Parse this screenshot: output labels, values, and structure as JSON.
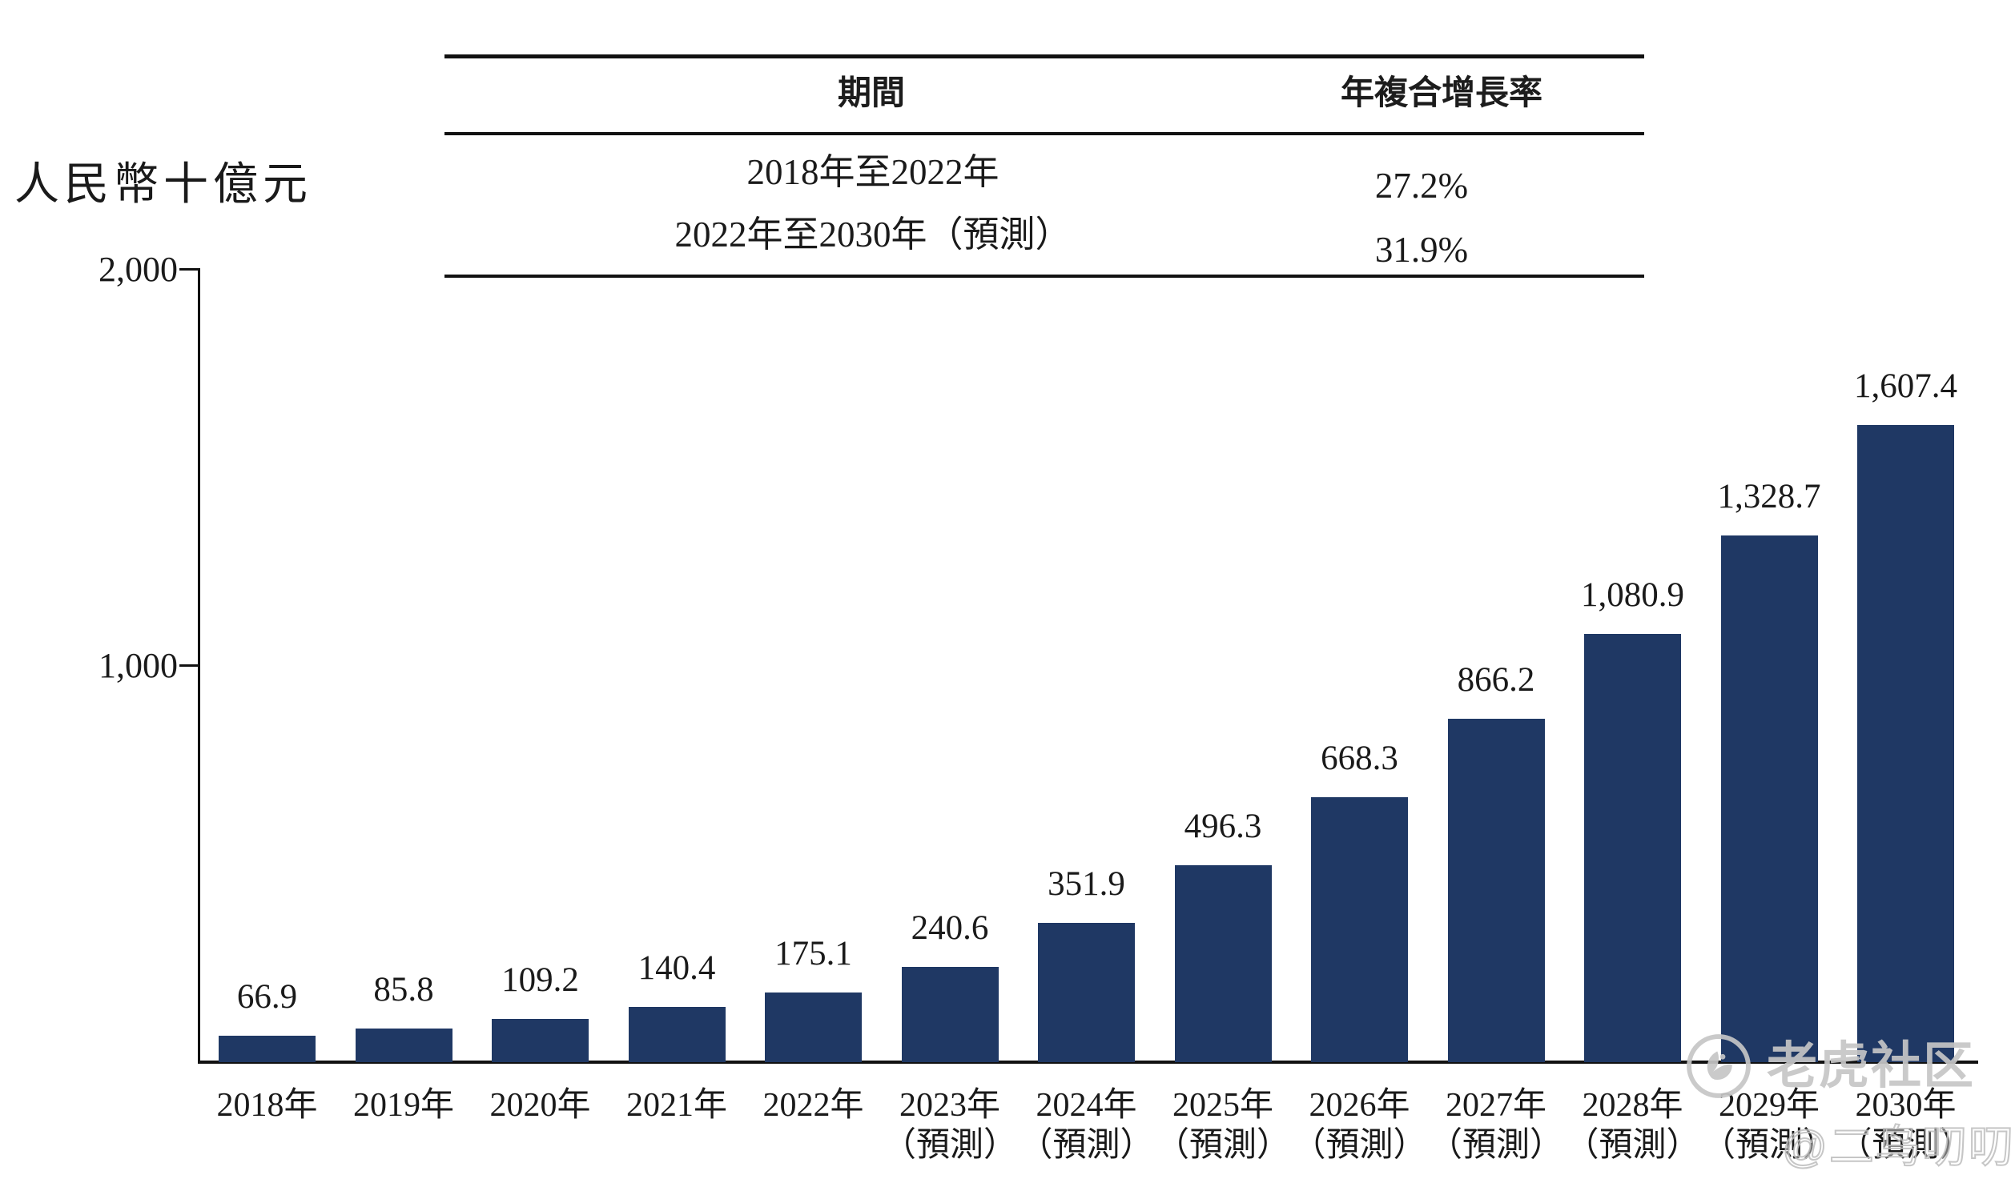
{
  "unit_label": "人民幣十億元",
  "cagr_table": {
    "col_period": "期間",
    "col_cagr": "年複合增長率",
    "rows": [
      {
        "period": "2018年至2022年",
        "cagr": "27.2%"
      },
      {
        "period": "2022年至2030年（預測）",
        "cagr": "31.9%"
      }
    ]
  },
  "y_axis": {
    "ticks": [
      {
        "label": "2,000",
        "value": 2000
      },
      {
        "label": "1,000",
        "value": 1000
      }
    ]
  },
  "watermark": {
    "brand": "老虎社区",
    "handle": "@二鸟叨叨"
  },
  "chart_data": {
    "type": "bar",
    "title": "",
    "ylabel": "人民幣十億元",
    "categories": [
      "2018年",
      "2019年",
      "2020年",
      "2021年",
      "2022年",
      "2023年",
      "2024年",
      "2025年",
      "2026年",
      "2027年",
      "2028年",
      "2029年",
      "2030年"
    ],
    "category_notes": [
      "",
      "",
      "",
      "",
      "",
      "（預測）",
      "（預測）",
      "（預測）",
      "（預測）",
      "（預測）",
      "（預測）",
      "（預測）",
      "（預測）"
    ],
    "values": [
      66.9,
      85.8,
      109.2,
      140.4,
      175.1,
      240.6,
      351.9,
      496.3,
      668.3,
      866.2,
      1080.9,
      1328.7,
      1607.4
    ],
    "value_labels": [
      "66.9",
      "85.8",
      "109.2",
      "140.4",
      "175.1",
      "240.6",
      "351.9",
      "496.3",
      "668.3",
      "866.2",
      "1,080.9",
      "1,328.7",
      "1,607.4"
    ],
    "ylim": [
      0,
      2000
    ],
    "ytick_labels": [
      "2,000",
      "1,000"
    ],
    "grid": false,
    "legend": false,
    "bar_color": "#1f3864",
    "cagr_annotations": [
      {
        "period": "2018年至2022年",
        "value": "27.2%"
      },
      {
        "period": "2022年至2030年（預測）",
        "value": "31.9%"
      }
    ]
  }
}
